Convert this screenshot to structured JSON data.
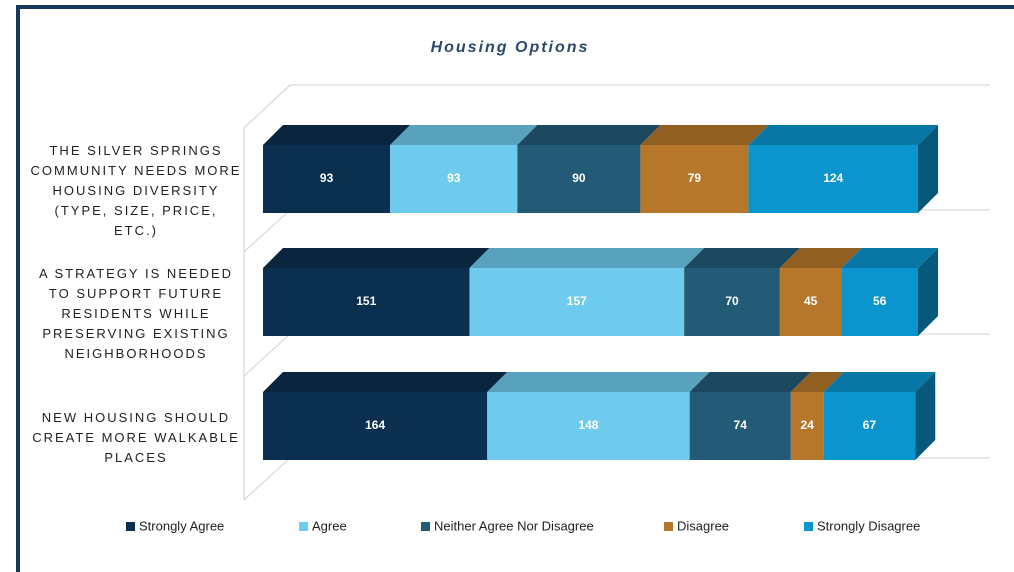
{
  "chart_data": {
    "type": "bar3d-stacked-horizontal",
    "title": "Housing Options",
    "categories": [
      "THE SILVER SPRINGS COMMUNITY NEEDS MORE HOUSING DIVERSITY (TYPE, SIZE, PRICE, ETC.)",
      "A STRATEGY IS NEEDED TO SUPPORT FUTURE RESIDENTS WHILE PRESERVING EXISTING NEIGHBORHOODS",
      "NEW HOUSING SHOULD CREATE MORE WALKABLE PLACES"
    ],
    "series": [
      {
        "name": "Strongly Agree",
        "color": "#0b2f4e",
        "values": [
          93,
          151,
          164
        ]
      },
      {
        "name": "Agree",
        "color": "#6ecbee",
        "values": [
          93,
          157,
          148
        ]
      },
      {
        "name": "Neither Agree Nor Disagree",
        "color": "#235b77",
        "values": [
          90,
          70,
          74
        ]
      },
      {
        "name": "Disagree",
        "color": "#b7772a",
        "values": [
          79,
          45,
          24
        ]
      },
      {
        "name": "Strongly Disagree",
        "color": "#0b95cf",
        "values": [
          124,
          56,
          67
        ]
      }
    ],
    "legend": "bottom"
  }
}
